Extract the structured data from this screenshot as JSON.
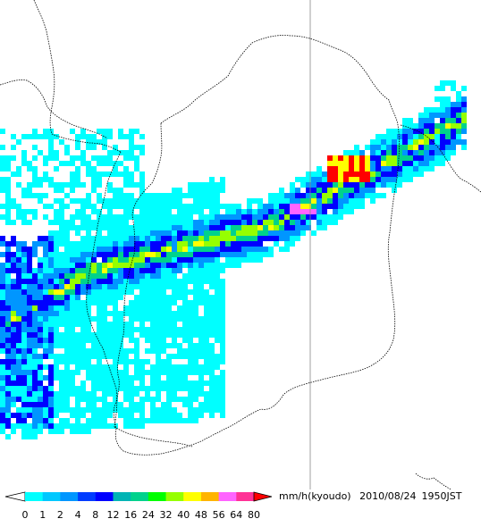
{
  "legend": {
    "unit": "mm/h(kyoudo)",
    "date": "2010/08/24",
    "time": "1950JST",
    "ticks": [
      "0",
      "1",
      "2",
      "4",
      "8",
      "12",
      "16",
      "24",
      "32",
      "40",
      "48",
      "56",
      "64",
      "80"
    ],
    "colors": [
      "#00ffff",
      "#00c8ff",
      "#0096ff",
      "#003cff",
      "#0000ff",
      "#00b4b4",
      "#00d28c",
      "#00ff00",
      "#96ff00",
      "#ffff00",
      "#ffb400",
      "#ff64ff",
      "#ff3296",
      "#ff0000"
    ]
  },
  "map": {
    "type": "rain-radar",
    "region_color": "#000000"
  }
}
